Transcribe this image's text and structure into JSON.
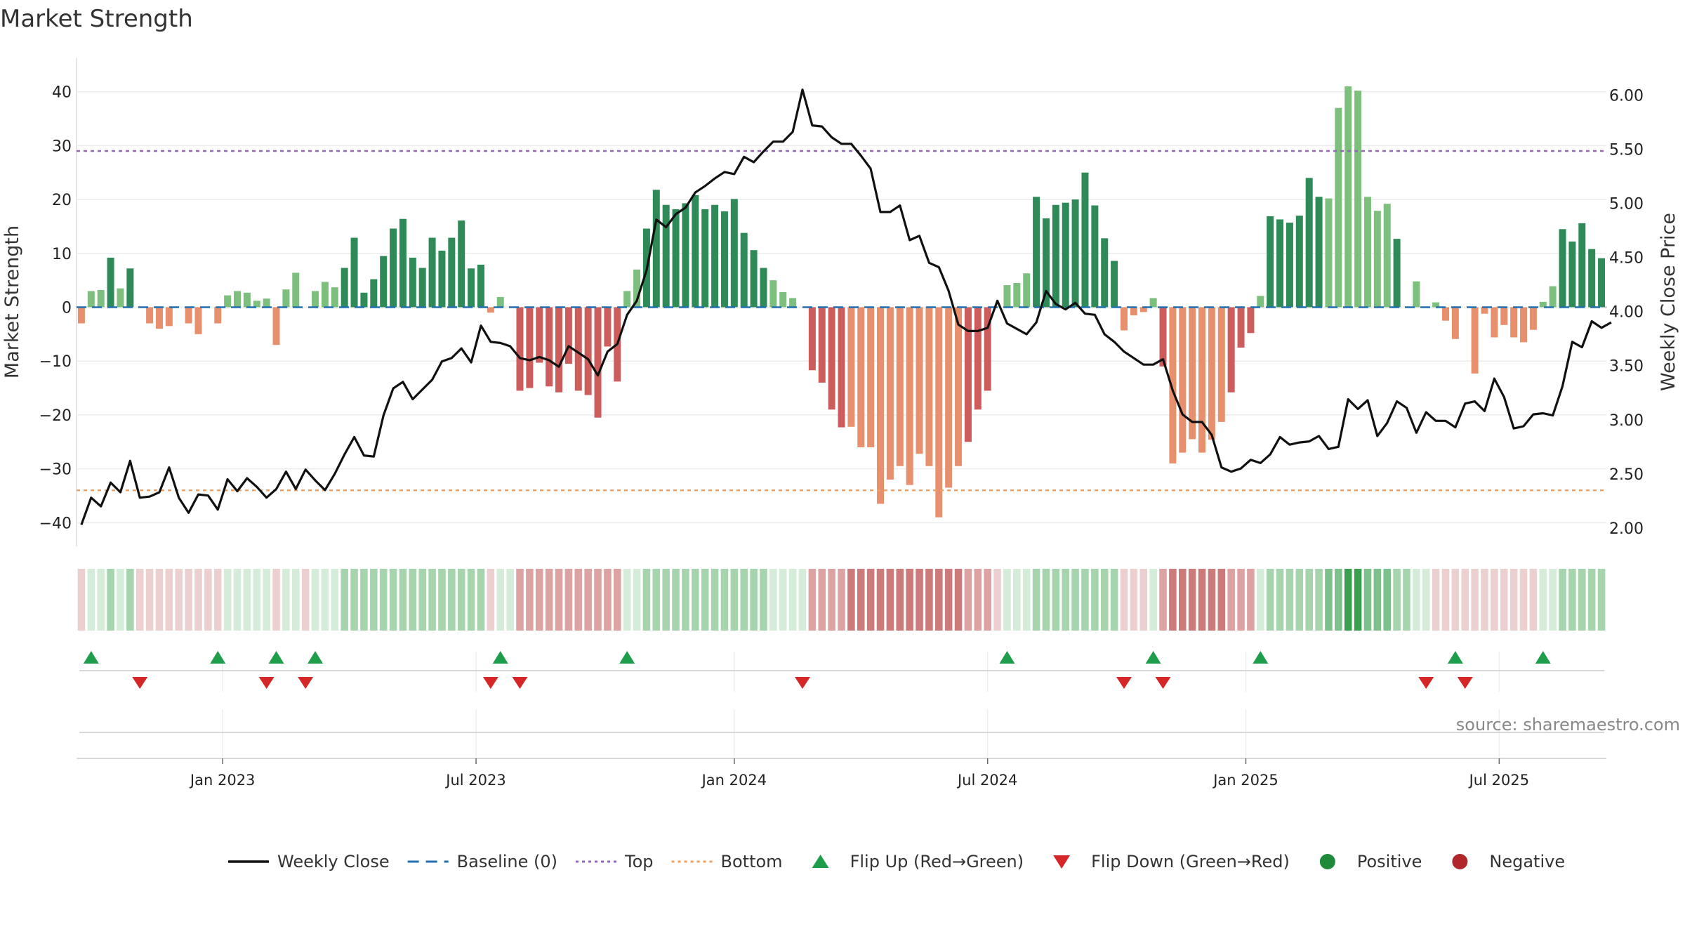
{
  "chart_data": {
    "type": "bar+line",
    "title": "Market Strength",
    "ylabel_left": "Market Strength",
    "ylabel_right": "Weekly Close Price",
    "ylim_left": [
      -44,
      44
    ],
    "ylim_right": [
      1.85,
      6.23
    ],
    "yticks_left": [
      {
        "v": 40,
        "label": "40"
      },
      {
        "v": 30,
        "label": "30"
      },
      {
        "v": 20,
        "label": "20"
      },
      {
        "v": 10,
        "label": "10"
      },
      {
        "v": 0,
        "label": "0"
      },
      {
        "v": -10,
        "label": "−10"
      },
      {
        "v": -20,
        "label": "−20"
      },
      {
        "v": -30,
        "label": "−30"
      },
      {
        "v": -40,
        "label": "−40"
      }
    ],
    "yticks_right": [
      {
        "v": 6.0,
        "label": "6.00"
      },
      {
        "v": 5.5,
        "label": "5.50"
      },
      {
        "v": 5.0,
        "label": "5.00"
      },
      {
        "v": 4.5,
        "label": "4.50"
      },
      {
        "v": 4.0,
        "label": "4.00"
      },
      {
        "v": 3.5,
        "label": "3.50"
      },
      {
        "v": 3.0,
        "label": "3.00"
      },
      {
        "v": 2.5,
        "label": "2.50"
      },
      {
        "v": 2.0,
        "label": "2.00"
      }
    ],
    "xticks": [
      {
        "week": 14.5,
        "label": "Jan 2023"
      },
      {
        "week": 40.5,
        "label": "Jul 2023"
      },
      {
        "week": 67,
        "label": "Jan 2024"
      },
      {
        "week": 93,
        "label": "Jul 2024"
      },
      {
        "week": 119.5,
        "label": "Jan 2025"
      },
      {
        "week": 145.5,
        "label": "Jul 2025"
      }
    ],
    "top_line": 29,
    "bottom_line": -34,
    "strength": [
      -3,
      3,
      3.2,
      9.2,
      3.5,
      7.2,
      0,
      -3,
      -4,
      -3.5,
      0,
      -3,
      -5,
      0,
      -3,
      2.2,
      3,
      2.7,
      1.2,
      1.6,
      -7,
      3.3,
      6.4,
      0,
      3,
      4.7,
      3.7,
      7.3,
      12.9,
      2.7,
      5.2,
      9.5,
      14.6,
      16.4,
      9.2,
      7.3,
      12.9,
      10.5,
      12.9,
      16.1,
      7.2,
      7.9,
      -1,
      1.9,
      0,
      -15.5,
      -15,
      -10.3,
      -14.7,
      -15.8,
      -10.5,
      -15.5,
      -16.3,
      -20.5,
      -7.3,
      -13.8,
      3,
      7,
      14.6,
      21.8,
      19,
      18.2,
      19.3,
      20.8,
      18.2,
      19,
      17.8,
      20.1,
      13.8,
      10.6,
      7.3,
      5,
      2.8,
      1.7,
      0,
      -11.7,
      -14,
      -19,
      -22.3,
      -22.2,
      -26,
      -26,
      -36.5,
      -32,
      -29.5,
      -33,
      -27.2,
      -29.5,
      -39,
      -33.5,
      -29.5,
      -25,
      -19,
      -15.5,
      0,
      4.1,
      4.5,
      6.3,
      20.5,
      16.5,
      19,
      19.4,
      20,
      25,
      18.9,
      12.8,
      8.6,
      -4.3,
      -1.5,
      -0.9,
      1.7,
      -11,
      -29,
      -27,
      -24.5,
      -27,
      -24.6,
      -21.3,
      -15.8,
      -7.5,
      -4.8,
      2.1,
      16.9,
      16.3,
      15.7,
      17,
      24,
      20.5,
      20.2,
      37,
      41,
      40.2,
      20.5,
      17.9,
      19.2,
      12.7,
      0,
      4.8,
      0,
      0.9,
      -2.5,
      -5.9,
      0,
      -12.3,
      -1.2,
      -5.6,
      -3.3,
      -5.6,
      -6.5,
      -4.2,
      1,
      3.9,
      14.5,
      12.2,
      15.6,
      10.8,
      9.1
    ],
    "weekly_close": [
      2.03,
      2.28,
      2.2,
      2.42,
      2.33,
      2.62,
      2.28,
      2.29,
      2.33,
      2.56,
      2.28,
      2.14,
      2.31,
      2.3,
      2.17,
      2.45,
      2.34,
      2.46,
      2.38,
      2.28,
      2.36,
      2.52,
      2.36,
      2.54,
      2.44,
      2.35,
      2.5,
      2.68,
      2.84,
      2.67,
      2.66,
      3.04,
      3.29,
      3.35,
      3.19,
      3.28,
      3.37,
      3.54,
      3.57,
      3.66,
      3.53,
      3.87,
      3.72,
      3.71,
      3.68,
      3.57,
      3.55,
      3.58,
      3.55,
      3.49,
      3.68,
      3.62,
      3.56,
      3.41,
      3.63,
      3.7,
      3.97,
      4.1,
      4.38,
      4.85,
      4.78,
      4.9,
      4.96,
      5.1,
      5.16,
      5.23,
      5.29,
      5.27,
      5.43,
      5.38,
      5.48,
      5.57,
      5.57,
      5.66,
      6.05,
      5.72,
      5.71,
      5.61,
      5.55,
      5.55,
      5.44,
      5.32,
      4.92,
      4.92,
      4.98,
      4.66,
      4.7,
      4.45,
      4.41,
      4.19,
      3.88,
      3.82,
      3.82,
      3.85,
      4.1,
      3.89,
      3.84,
      3.79,
      3.9,
      4.19,
      4.07,
      4.02,
      4.08,
      3.98,
      3.97,
      3.79,
      3.72,
      3.63,
      3.57,
      3.51,
      3.51,
      3.56,
      3.27,
      3.05,
      2.98,
      2.98,
      2.86,
      2.56,
      2.52,
      2.55,
      2.63,
      2.6,
      2.68,
      2.84,
      2.77,
      2.79,
      2.8,
      2.85,
      2.73,
      2.75,
      3.19,
      3.1,
      3.18,
      2.85,
      2.97,
      3.17,
      3.11,
      2.88,
      3.07,
      2.99,
      2.99,
      2.93,
      3.15,
      3.17,
      3.08,
      3.38,
      3.21,
      2.92,
      2.94,
      3.05,
      3.06,
      3.04,
      3.31,
      3.72,
      3.67,
      3.91,
      3.85,
      3.9
    ],
    "regime_intensity": [
      -1,
      1,
      1,
      2,
      1,
      2,
      -1,
      -1,
      -1,
      -1,
      -1,
      -1,
      -1,
      -1,
      -1,
      1,
      1,
      1,
      1,
      1,
      -1,
      1,
      1,
      -1,
      1,
      1,
      1,
      2,
      2,
      2,
      2,
      2,
      2,
      2,
      2,
      2,
      2,
      2,
      2,
      2,
      2,
      2,
      -1,
      1,
      1,
      -2,
      -2,
      -2,
      -2,
      -2,
      -2,
      -2,
      -2,
      -2,
      -2,
      -2,
      1,
      1,
      2,
      2,
      2,
      2,
      2,
      2,
      2,
      2,
      2,
      2,
      2,
      2,
      2,
      1,
      1,
      1,
      1,
      -2,
      -2,
      -2,
      -2,
      -3,
      -3,
      -3,
      -3,
      -3,
      -3,
      -3,
      -3,
      -3,
      -3,
      -3,
      -3,
      -2,
      -2,
      -2,
      -1,
      1,
      1,
      1,
      2,
      2,
      2,
      2,
      2,
      2,
      2,
      2,
      2,
      -1,
      -1,
      -1,
      1,
      -2,
      -3,
      -3,
      -3,
      -3,
      -3,
      -3,
      -2,
      -2,
      -2,
      1,
      2,
      2,
      2,
      2,
      2,
      2,
      3,
      3,
      4,
      4,
      3,
      3,
      3,
      2,
      2,
      1,
      1,
      -1,
      -1,
      -1,
      -1,
      -1,
      -1,
      -1,
      -1,
      -1,
      -1,
      -1,
      1,
      1,
      2,
      2,
      2,
      2,
      2
    ],
    "flip_up_weeks": [
      1,
      14,
      20,
      24,
      43,
      56,
      95,
      110,
      121,
      141,
      150
    ],
    "flip_down_weeks": [
      6,
      19,
      23,
      42,
      45,
      74,
      107,
      111,
      138,
      142
    ],
    "legend": [
      {
        "label": "Weekly Close",
        "kind": "line",
        "color": "#111111"
      },
      {
        "label": "Baseline (0)",
        "kind": "dash",
        "color": "#1f6fb2"
      },
      {
        "label": "Top",
        "kind": "dot",
        "color": "#9467bd"
      },
      {
        "label": "Bottom",
        "kind": "dot",
        "color": "#f0a060"
      },
      {
        "label": "Flip Up (Red→Green)",
        "kind": "tri-up",
        "color": "#1e9e4a"
      },
      {
        "label": "Flip Down (Green→Red)",
        "kind": "tri-down",
        "color": "#d62728"
      },
      {
        "label": "Positive",
        "kind": "circle",
        "color": "#1f8a3a"
      },
      {
        "label": "Negative",
        "kind": "circle",
        "color": "#b0262b"
      }
    ],
    "source": "source: sharemaestro.com"
  }
}
